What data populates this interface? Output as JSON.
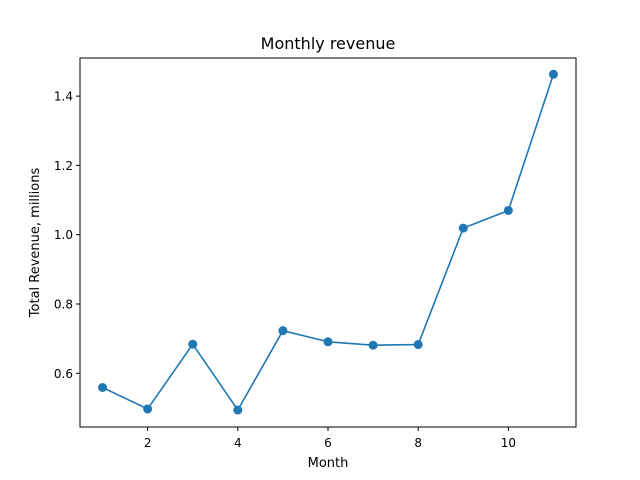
{
  "chart_data": {
    "type": "line",
    "title": "Monthly revenue",
    "xlabel": "Month",
    "ylabel": "Total Revenue, millions",
    "x": [
      1,
      2,
      3,
      4,
      5,
      6,
      7,
      8,
      9,
      10,
      11
    ],
    "series": [
      {
        "values": [
          0.559,
          0.497,
          0.684,
          0.494,
          0.723,
          0.691,
          0.681,
          0.683,
          1.019,
          1.07,
          1.463
        ],
        "color": "#1f77b4"
      }
    ],
    "xlim": [
      0.5,
      11.5
    ],
    "ylim": [
      0.445,
      1.51
    ],
    "xticks": [
      2,
      4,
      6,
      8,
      10
    ],
    "xtick_labels": [
      "2",
      "4",
      "6",
      "8",
      "10"
    ],
    "yticks": [
      0.6,
      0.8,
      1.0,
      1.2,
      1.4
    ],
    "ytick_labels": [
      "0.6",
      "0.8",
      "1.0",
      "1.2",
      "1.4"
    ],
    "grid": false,
    "marker": "circle"
  }
}
